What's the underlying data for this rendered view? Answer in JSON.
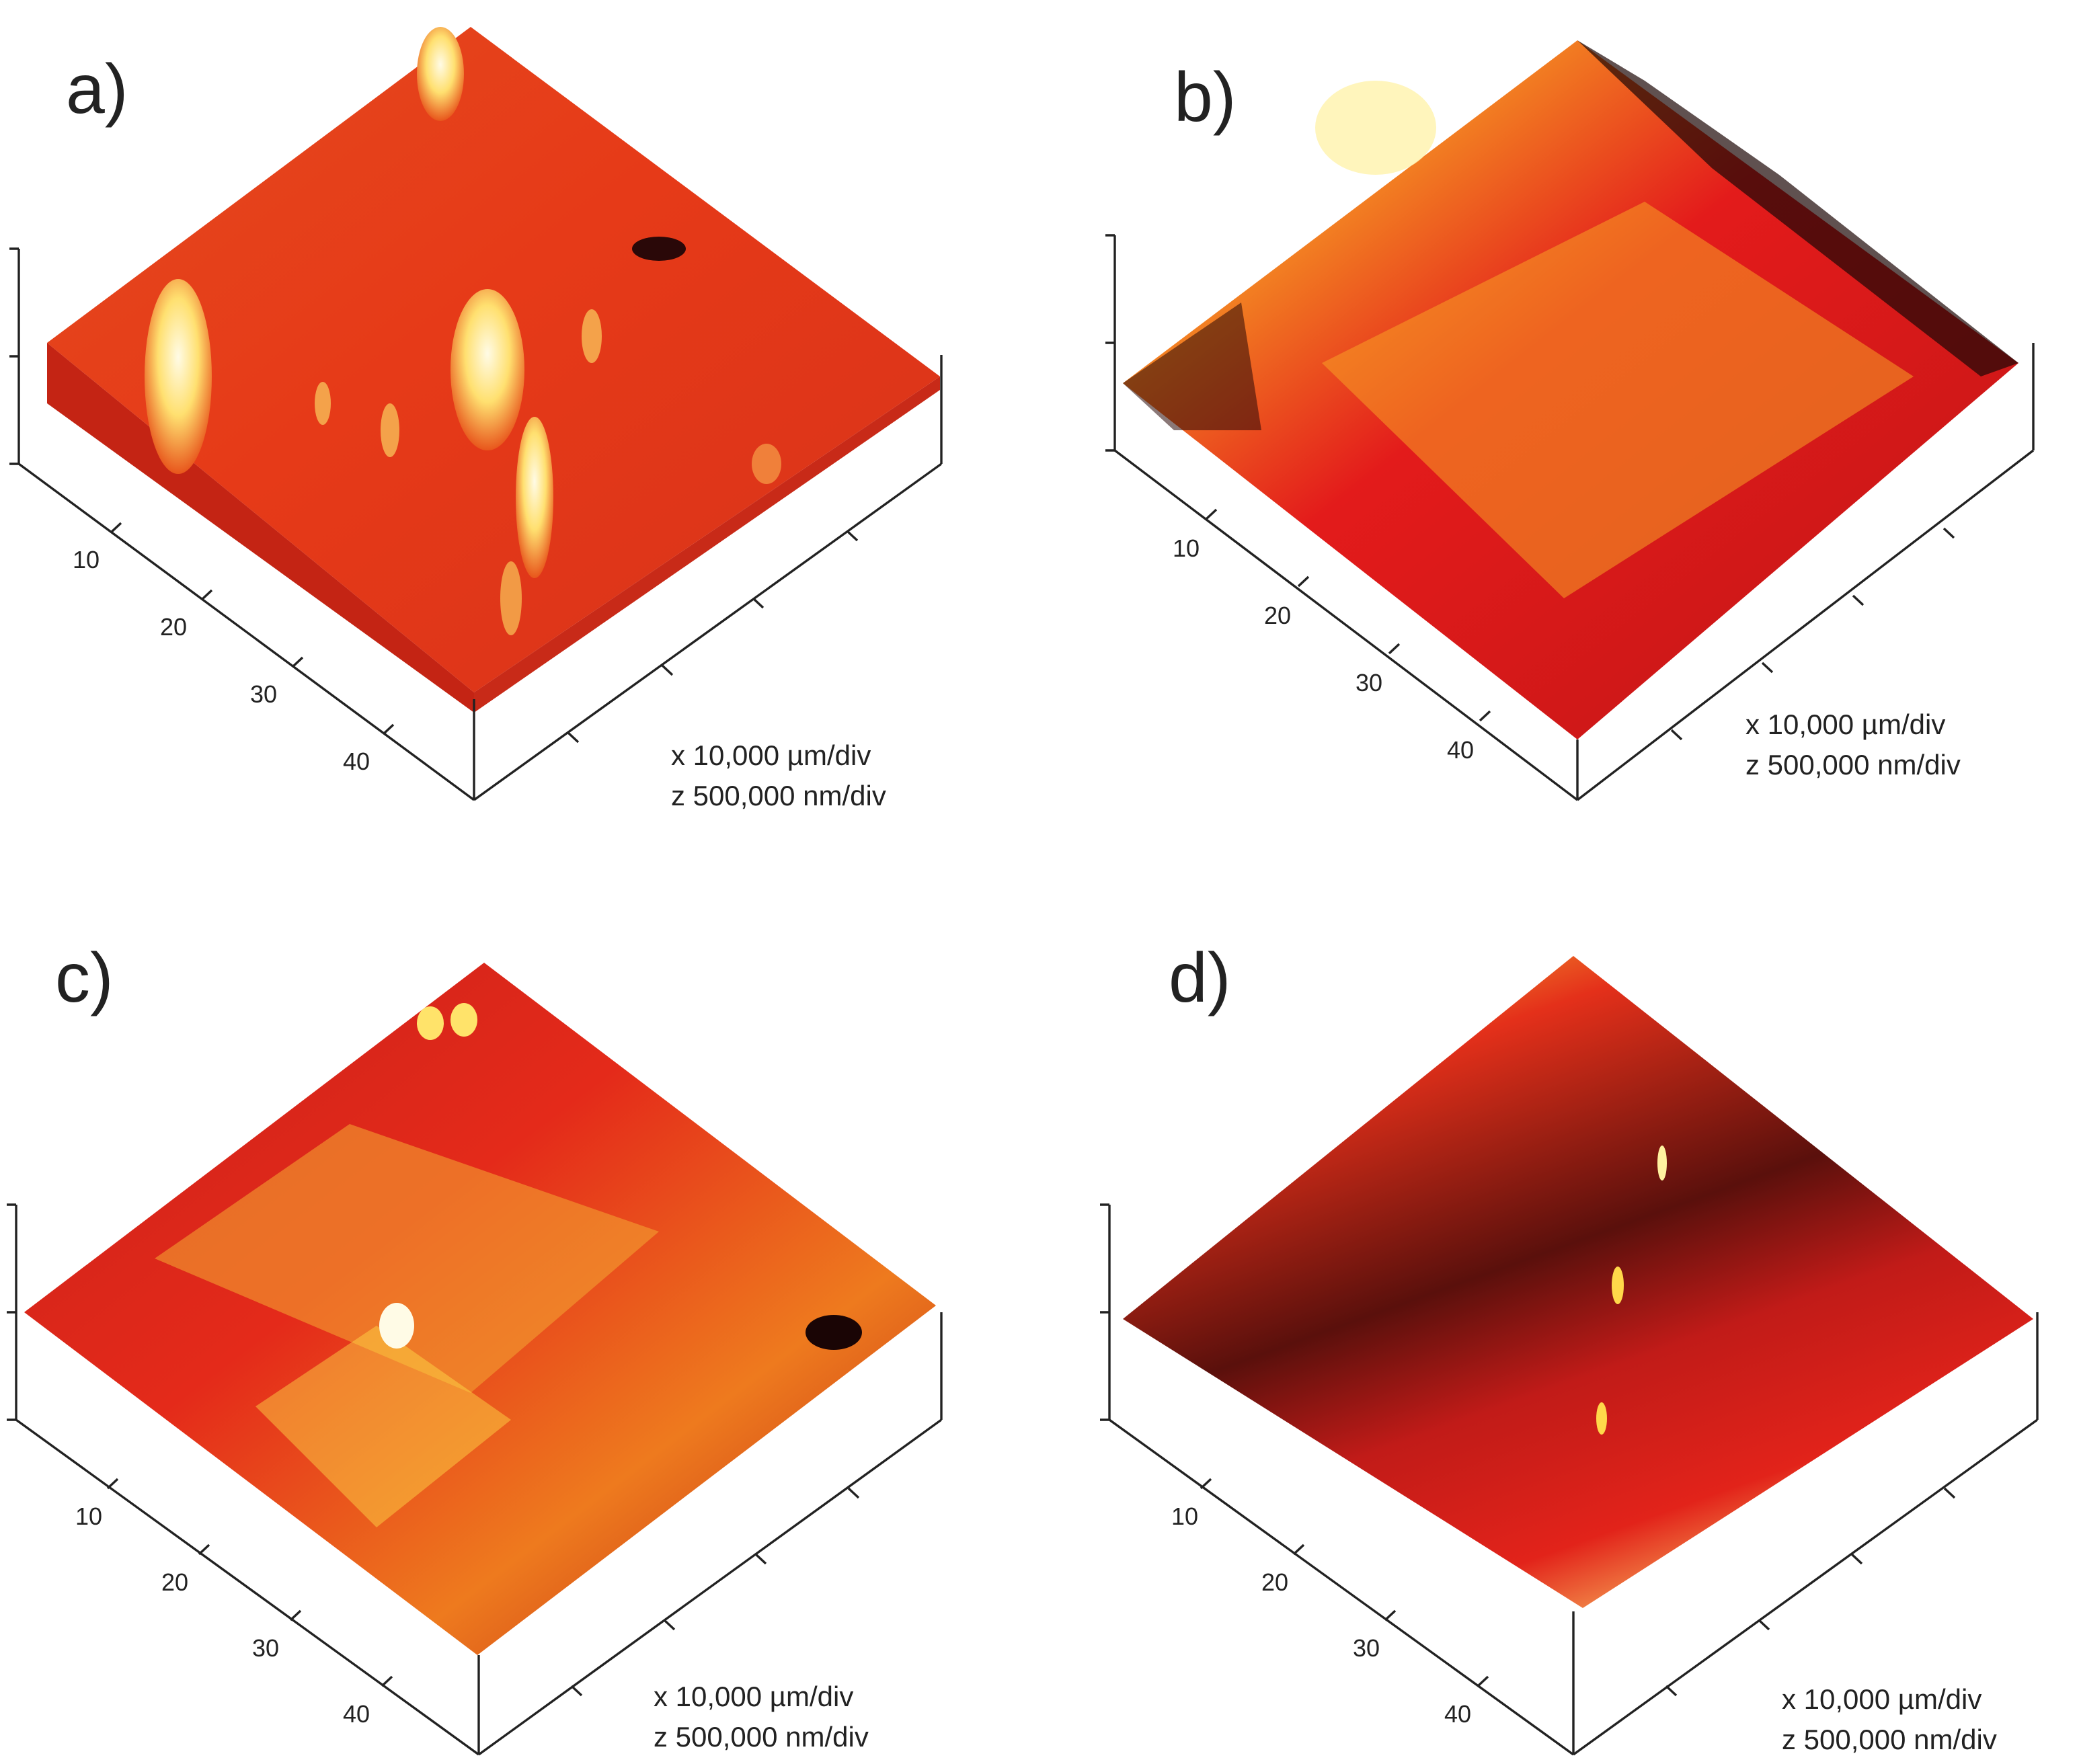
{
  "figure": {
    "panels": [
      {
        "id": "a",
        "label": "a)",
        "ticks": [
          "10",
          "20",
          "30",
          "40"
        ],
        "scale_x": "x 10,000 µm/div",
        "scale_z": "z 500,000 nm/div",
        "surface": {
          "low": "#a30e10",
          "mid": "#e2431b",
          "high": "#f6a03a",
          "peak": "#fff6cf"
        }
      },
      {
        "id": "b",
        "label": "b)",
        "ticks": [
          "10",
          "20",
          "30",
          "40"
        ],
        "scale_x": "x 10,000 µm/div",
        "scale_z": "z 500,000 nm/div",
        "surface": {
          "low": "#1d0706",
          "mid": "#e31b1b",
          "high": "#f7a024",
          "peak": "#fff3b0"
        }
      },
      {
        "id": "c",
        "label": "c)",
        "ticks": [
          "10",
          "20",
          "30",
          "40"
        ],
        "scale_x": "x 10,000 µm/div",
        "scale_z": "z 500,000 nm/div",
        "surface": {
          "low": "#2a0808",
          "mid": "#e21d1a",
          "high": "#f08a1e",
          "peak": "#ffee7a"
        }
      },
      {
        "id": "d",
        "label": "d)",
        "ticks": [
          "10",
          "20",
          "30",
          "40"
        ],
        "scale_x": "x 10,000 µm/div",
        "scale_z": "z 500,000 nm/div",
        "surface": {
          "low": "#1e0707",
          "mid": "#dc1c1a",
          "high": "#f7b51d",
          "peak": "#ffef8c"
        }
      }
    ]
  }
}
